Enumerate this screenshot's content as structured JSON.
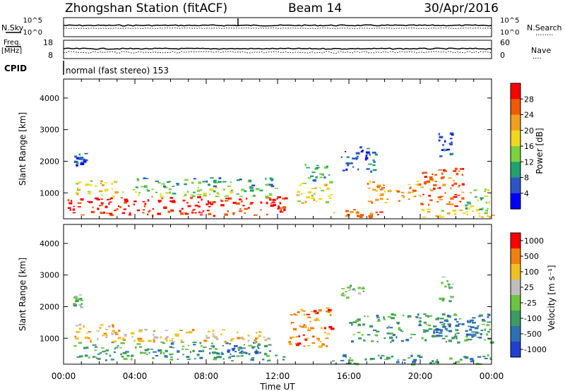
{
  "header": {
    "title": "Zhongshan Station (fitACF)",
    "beam": "Beam 14",
    "date": "30/Apr/2016"
  },
  "panels": {
    "nsky": {
      "left_label": "N.Sky",
      "right_label": "N.Search",
      "right_marker": "........",
      "left_ticks": [
        "10^5",
        "10^0"
      ],
      "right_ticks": [
        "10^5",
        "10^0"
      ]
    },
    "freq": {
      "left_label_1": "Freq.",
      "left_label_2": "[MHz]",
      "right_label": "Nave",
      "right_marker": "....",
      "left_ticks": [
        "18",
        "8"
      ],
      "right_ticks": [
        "60",
        "0"
      ]
    },
    "cpid": {
      "label": "CPID",
      "text": "normal (fast stereo) 153"
    }
  },
  "chart_data": [
    {
      "type": "heatmap",
      "name": "power",
      "ylabel": "Slant Range [km]",
      "xlabel": "Time UT",
      "x_ticks": [
        "00:00",
        "04:00",
        "08:00",
        "12:00",
        "16:00",
        "20:00",
        "00:00"
      ],
      "y_ticks": [
        1000,
        2000,
        3000,
        4000
      ],
      "ylim": [
        180,
        4600
      ],
      "xlim_hours": [
        0,
        24
      ],
      "colorbar": {
        "label": "Power [dB]",
        "ticks": [
          "4",
          "8",
          "12",
          "16",
          "20",
          "24",
          "28"
        ],
        "range": [
          0,
          32
        ],
        "colors": [
          "#0000ff",
          "#2d55c8",
          "#23a06e",
          "#7bd23c",
          "#f0d820",
          "#f0a020",
          "#f05a00",
          "#ff0000"
        ]
      },
      "regions": [
        {
          "t0": 0.2,
          "t1": 12.5,
          "r0": 300,
          "r1": 900,
          "level": 7
        },
        {
          "t0": 0.5,
          "t1": 3,
          "r0": 900,
          "r1": 1400,
          "level": 4
        },
        {
          "t0": 3,
          "t1": 12,
          "r0": 900,
          "r1": 1200,
          "level": 3
        },
        {
          "t0": 4,
          "t1": 12,
          "r0": 1200,
          "r1": 1500,
          "level": 2
        },
        {
          "t0": 0.5,
          "t1": 1.2,
          "r0": 1900,
          "r1": 2300,
          "level": 1
        },
        {
          "t0": 13,
          "t1": 15,
          "r0": 700,
          "r1": 1400,
          "level": 4
        },
        {
          "t0": 13.5,
          "t1": 15,
          "r0": 1400,
          "r1": 2000,
          "level": 2
        },
        {
          "t0": 15,
          "t1": 18,
          "r0": 250,
          "r1": 500,
          "level": 6
        },
        {
          "t0": 15.5,
          "t1": 17.5,
          "r0": 1700,
          "r1": 2500,
          "level": 1
        },
        {
          "t0": 17,
          "t1": 20,
          "r0": 700,
          "r1": 1400,
          "level": 5
        },
        {
          "t0": 20,
          "t1": 22.5,
          "r0": 600,
          "r1": 1800,
          "level": 6
        },
        {
          "t0": 21,
          "t1": 21.8,
          "r0": 2100,
          "r1": 3000,
          "level": 1
        },
        {
          "t0": 20,
          "t1": 24,
          "r0": 200,
          "r1": 500,
          "level": 4
        },
        {
          "t0": 22.5,
          "t1": 24,
          "r0": 500,
          "r1": 1200,
          "level": 3
        }
      ]
    },
    {
      "type": "heatmap",
      "name": "velocity",
      "ylabel": "Slant Range [km]",
      "xlabel": "Time UT",
      "x_ticks": [
        "00:00",
        "04:00",
        "08:00",
        "12:00",
        "16:00",
        "20:00",
        "00:00"
      ],
      "y_ticks": [
        1000,
        2000,
        3000,
        4000
      ],
      "ylim": [
        180,
        4600
      ],
      "xlim_hours": [
        0,
        24
      ],
      "colorbar": {
        "label": "Velocity [m s⁻¹]",
        "ticks": [
          "1000",
          "500",
          "100",
          "25",
          "-25",
          "-100",
          "-500",
          "-1000"
        ],
        "colors": [
          "#2040d0",
          "#2d70b4",
          "#3c9a64",
          "#6cc440",
          "#bebebe",
          "#f0c020",
          "#f08010",
          "#ff0000"
        ]
      },
      "regions": [
        {
          "t0": 0.3,
          "t1": 12.5,
          "r0": 300,
          "r1": 900,
          "level": 2
        },
        {
          "t0": 0.5,
          "t1": 3,
          "r0": 900,
          "r1": 1500,
          "level": 5
        },
        {
          "t0": 3,
          "t1": 12,
          "r0": 900,
          "r1": 1300,
          "level": 5
        },
        {
          "t0": 8,
          "t1": 11,
          "r0": 500,
          "r1": 800,
          "level": 1
        },
        {
          "t0": 0.5,
          "t1": 1,
          "r0": 2000,
          "r1": 2400,
          "level": 3
        },
        {
          "t0": 12.5,
          "t1": 15,
          "r0": 700,
          "r1": 2000,
          "level": 6
        },
        {
          "t0": 15,
          "t1": 24,
          "r0": 200,
          "r1": 500,
          "level": 2
        },
        {
          "t0": 15.5,
          "t1": 17,
          "r0": 2300,
          "r1": 2700,
          "level": 3
        },
        {
          "t0": 16,
          "t1": 24,
          "r0": 900,
          "r1": 1800,
          "level": 2
        },
        {
          "t0": 20.5,
          "t1": 23,
          "r0": 1000,
          "r1": 1600,
          "level": 1
        },
        {
          "t0": 21,
          "t1": 21.8,
          "r0": 2200,
          "r1": 3000,
          "level": 3
        }
      ]
    }
  ]
}
